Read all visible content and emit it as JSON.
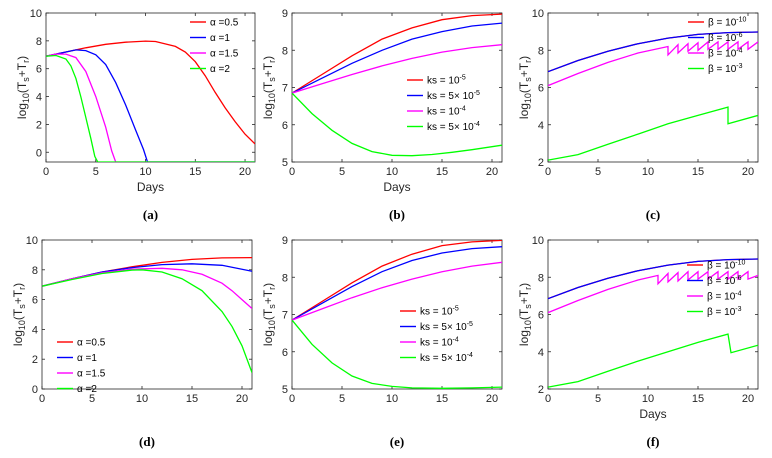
{
  "figure": {
    "ylabel_parts": [
      "log",
      "10",
      "(T",
      "s",
      "+T",
      "r",
      ")"
    ]
  },
  "chart_data": [
    {
      "panel": "(a)",
      "type": "line",
      "xlabel": "Days",
      "xlim": [
        0,
        21
      ],
      "ylim": [
        -0.7,
        10
      ],
      "xticks": [
        0,
        5,
        10,
        15,
        20
      ],
      "yticks": [
        0,
        2,
        4,
        6,
        8,
        10
      ],
      "legend_position": "top-right",
      "series": [
        {
          "name": "α =0.5",
          "color": "#ff0000",
          "x": [
            0,
            2,
            4,
            6,
            8,
            10,
            11,
            13,
            14,
            15,
            16,
            17,
            18,
            19,
            20,
            21
          ],
          "y": [
            6.9,
            7.2,
            7.5,
            7.75,
            7.9,
            7.98,
            7.95,
            7.6,
            7.2,
            6.5,
            5.5,
            4.3,
            3.2,
            2.2,
            1.3,
            0.6
          ]
        },
        {
          "name": "α =1",
          "color": "#0000ff",
          "x": [
            0,
            2,
            3,
            4,
            5,
            6,
            7,
            8,
            9,
            9.8,
            10.2,
            21
          ],
          "y": [
            6.9,
            7.2,
            7.35,
            7.3,
            7.0,
            6.3,
            5.0,
            3.4,
            1.6,
            0.2,
            -0.7,
            -0.7
          ]
        },
        {
          "name": "α =1.5",
          "color": "#ff00ff",
          "x": [
            0,
            1,
            2,
            3,
            4,
            5,
            6,
            6.6,
            7,
            21
          ],
          "y": [
            6.9,
            7.05,
            7.05,
            6.8,
            5.8,
            4.0,
            1.8,
            0.1,
            -0.7,
            -0.7
          ]
        },
        {
          "name": "α =2",
          "color": "#00ff00",
          "x": [
            0,
            1,
            2,
            2.5,
            3,
            3.5,
            4,
            4.5,
            4.9,
            5.2,
            21
          ],
          "y": [
            6.9,
            6.95,
            6.7,
            6.2,
            5.3,
            4.0,
            2.5,
            1.0,
            -0.3,
            -0.7,
            -0.7
          ]
        }
      ]
    },
    {
      "panel": "(b)",
      "type": "line",
      "xlabel": "Days",
      "xlim": [
        0,
        21
      ],
      "ylim": [
        5,
        9
      ],
      "xticks": [
        0,
        5,
        10,
        15,
        20
      ],
      "yticks": [
        5,
        6,
        7,
        8,
        9
      ],
      "legend_position": "center-right",
      "series": [
        {
          "name": "ks = 10",
          "sup": "-5",
          "color": "#ff0000",
          "x": [
            0,
            3,
            6,
            9,
            12,
            15,
            18,
            21
          ],
          "y": [
            6.85,
            7.35,
            7.85,
            8.3,
            8.6,
            8.82,
            8.93,
            8.97
          ]
        },
        {
          "name": "ks = 5× 10",
          "sup": "-5",
          "color": "#0000ff",
          "x": [
            0,
            3,
            6,
            9,
            12,
            15,
            18,
            21
          ],
          "y": [
            6.85,
            7.25,
            7.65,
            8.0,
            8.3,
            8.5,
            8.65,
            8.73
          ]
        },
        {
          "name": "ks = 10",
          "sup": "-4",
          "color": "#ff00ff",
          "x": [
            0,
            3,
            6,
            9,
            12,
            15,
            18,
            21
          ],
          "y": [
            6.85,
            7.1,
            7.35,
            7.58,
            7.78,
            7.95,
            8.07,
            8.15
          ]
        },
        {
          "name": "ks = 5× 10",
          "sup": "-4",
          "color": "#00ff00",
          "x": [
            0,
            2,
            4,
            6,
            8,
            10,
            12,
            14,
            16,
            18,
            21
          ],
          "y": [
            6.85,
            6.3,
            5.85,
            5.5,
            5.28,
            5.18,
            5.17,
            5.2,
            5.26,
            5.33,
            5.45
          ]
        }
      ]
    },
    {
      "panel": "(c)",
      "type": "line",
      "xlabel": "",
      "xlim": [
        0,
        21
      ],
      "ylim": [
        2,
        10
      ],
      "xticks": [
        0,
        5,
        10,
        15,
        20
      ],
      "yticks": [
        2,
        4,
        6,
        8,
        10
      ],
      "legend_position": "top-right",
      "series": [
        {
          "name": "β = 10",
          "sup": "-10",
          "color": "#ff0000",
          "x": [
            0,
            3,
            6,
            9,
            12,
            15,
            18,
            21
          ],
          "y": [
            6.85,
            7.45,
            7.95,
            8.35,
            8.65,
            8.85,
            8.95,
            8.98
          ]
        },
        {
          "name": "β = 10",
          "sup": "-6",
          "color": "#0000ff",
          "x": [
            0,
            3,
            6,
            9,
            12,
            15,
            18,
            21
          ],
          "y": [
            6.85,
            7.45,
            7.95,
            8.35,
            8.65,
            8.85,
            8.95,
            8.98
          ]
        },
        {
          "name": "β = 10",
          "sup": "-4",
          "color": "#ff00ff",
          "x": [
            0,
            3,
            6,
            9,
            12,
            12,
            13,
            13,
            14,
            14,
            15,
            15,
            16,
            16,
            17,
            17,
            18,
            18,
            19,
            19,
            20,
            20,
            21
          ],
          "y": [
            6.1,
            6.75,
            7.35,
            7.85,
            8.2,
            7.75,
            8.3,
            7.85,
            8.35,
            7.95,
            8.4,
            8.0,
            8.45,
            8.05,
            8.45,
            8.05,
            8.45,
            8.05,
            8.45,
            8.05,
            8.45,
            8.05,
            8.45
          ]
        },
        {
          "name": "β = 10",
          "sup": "-3",
          "color": "#00ff00",
          "x": [
            0,
            3,
            6,
            9,
            12,
            15,
            18,
            18,
            21
          ],
          "y": [
            2.1,
            2.4,
            2.95,
            3.5,
            4.05,
            4.5,
            4.95,
            4.05,
            4.5
          ]
        }
      ]
    },
    {
      "panel": "(d)",
      "type": "line",
      "xlabel": "",
      "xlim": [
        0,
        21
      ],
      "ylim": [
        0,
        10
      ],
      "xticks": [
        0,
        5,
        10,
        15,
        20
      ],
      "yticks": [
        0,
        2,
        4,
        6,
        8,
        10
      ],
      "legend_position": "bottom-left",
      "series": [
        {
          "name": "α =0.5",
          "color": "#ff0000",
          "x": [
            0,
            3,
            6,
            9,
            12,
            15,
            18,
            21
          ],
          "y": [
            6.9,
            7.4,
            7.85,
            8.2,
            8.5,
            8.7,
            8.8,
            8.82
          ]
        },
        {
          "name": "α =1",
          "color": "#0000ff",
          "x": [
            0,
            3,
            6,
            9,
            12,
            15,
            18,
            21
          ],
          "y": [
            6.9,
            7.4,
            7.85,
            8.15,
            8.35,
            8.4,
            8.3,
            7.9
          ]
        },
        {
          "name": "α =1.5",
          "color": "#ff00ff",
          "x": [
            0,
            3,
            6,
            9,
            12,
            14,
            16,
            18,
            19,
            20,
            21
          ],
          "y": [
            6.9,
            7.4,
            7.8,
            8.05,
            8.1,
            8.0,
            7.7,
            7.1,
            6.6,
            6.0,
            5.4
          ]
        },
        {
          "name": "α =2",
          "color": "#00ff00",
          "x": [
            0,
            3,
            6,
            9,
            10,
            12,
            14,
            16,
            18,
            19,
            20,
            21
          ],
          "y": [
            6.9,
            7.35,
            7.75,
            7.98,
            8.0,
            7.85,
            7.4,
            6.6,
            5.2,
            4.2,
            2.9,
            1.1
          ]
        }
      ]
    },
    {
      "panel": "(e)",
      "type": "line",
      "xlabel": "",
      "xlim": [
        0,
        21
      ],
      "ylim": [
        5,
        9
      ],
      "xticks": [
        0,
        5,
        10,
        15,
        20
      ],
      "yticks": [
        5,
        6,
        7,
        8,
        9
      ],
      "legend_position": "center-right",
      "series": [
        {
          "name": "ks = 10",
          "sup": "-5",
          "color": "#ff0000",
          "x": [
            0,
            3,
            6,
            9,
            12,
            15,
            18,
            21
          ],
          "y": [
            6.85,
            7.35,
            7.85,
            8.3,
            8.62,
            8.85,
            8.95,
            8.99
          ]
        },
        {
          "name": "ks = 5× 10",
          "sup": "-5",
          "color": "#0000ff",
          "x": [
            0,
            3,
            6,
            9,
            12,
            15,
            18,
            21
          ],
          "y": [
            6.85,
            7.3,
            7.75,
            8.15,
            8.45,
            8.65,
            8.77,
            8.82
          ]
        },
        {
          "name": "ks = 10",
          "sup": "-4",
          "color": "#ff00ff",
          "x": [
            0,
            3,
            6,
            9,
            12,
            15,
            18,
            21
          ],
          "y": [
            6.85,
            7.15,
            7.45,
            7.72,
            7.95,
            8.15,
            8.3,
            8.4
          ]
        },
        {
          "name": "ks = 5× 10",
          "sup": "-4",
          "color": "#00ff00",
          "x": [
            0,
            2,
            4,
            6,
            8,
            10,
            12,
            15,
            18,
            21
          ],
          "y": [
            6.85,
            6.2,
            5.7,
            5.35,
            5.15,
            5.07,
            5.03,
            5.02,
            5.03,
            5.05
          ]
        }
      ]
    },
    {
      "panel": "(f)",
      "type": "line",
      "xlabel": "Days",
      "xlim": [
        0,
        21
      ],
      "ylim": [
        2,
        10
      ],
      "xticks": [
        0,
        5,
        10,
        15,
        20
      ],
      "yticks": [
        2,
        4,
        6,
        8,
        10
      ],
      "legend_position": "top-right",
      "series": [
        {
          "name": "β = 10",
          "sup": "-10",
          "color": "#ff0000",
          "x": [
            0,
            3,
            6,
            9,
            12,
            15,
            18,
            21
          ],
          "y": [
            6.85,
            7.45,
            7.95,
            8.35,
            8.65,
            8.85,
            8.95,
            8.98
          ]
        },
        {
          "name": "β = 10",
          "sup": "-6",
          "color": "#0000ff",
          "x": [
            0,
            3,
            6,
            9,
            12,
            15,
            18,
            21
          ],
          "y": [
            6.85,
            7.45,
            7.95,
            8.35,
            8.65,
            8.85,
            8.95,
            8.98
          ]
        },
        {
          "name": "β = 10",
          "sup": "-4",
          "color": "#ff00ff",
          "x": [
            0,
            3,
            6,
            9,
            11,
            11,
            12,
            12,
            13,
            13,
            14,
            14,
            15,
            15,
            16,
            16,
            17,
            17,
            18,
            18,
            19,
            19,
            20,
            20,
            21
          ],
          "y": [
            6.1,
            6.75,
            7.35,
            7.85,
            8.1,
            7.65,
            8.2,
            7.75,
            8.25,
            7.8,
            8.3,
            7.85,
            8.3,
            7.9,
            8.3,
            7.9,
            8.3,
            7.9,
            8.3,
            7.9,
            8.3,
            7.9,
            8.3,
            7.9,
            8.1
          ]
        },
        {
          "name": "β = 10",
          "sup": "-3",
          "color": "#00ff00",
          "x": [
            0,
            3,
            6,
            9,
            12,
            15,
            18,
            18.3,
            21
          ],
          "y": [
            2.1,
            2.4,
            2.95,
            3.5,
            4.0,
            4.5,
            4.95,
            3.95,
            4.35
          ]
        }
      ]
    }
  ]
}
